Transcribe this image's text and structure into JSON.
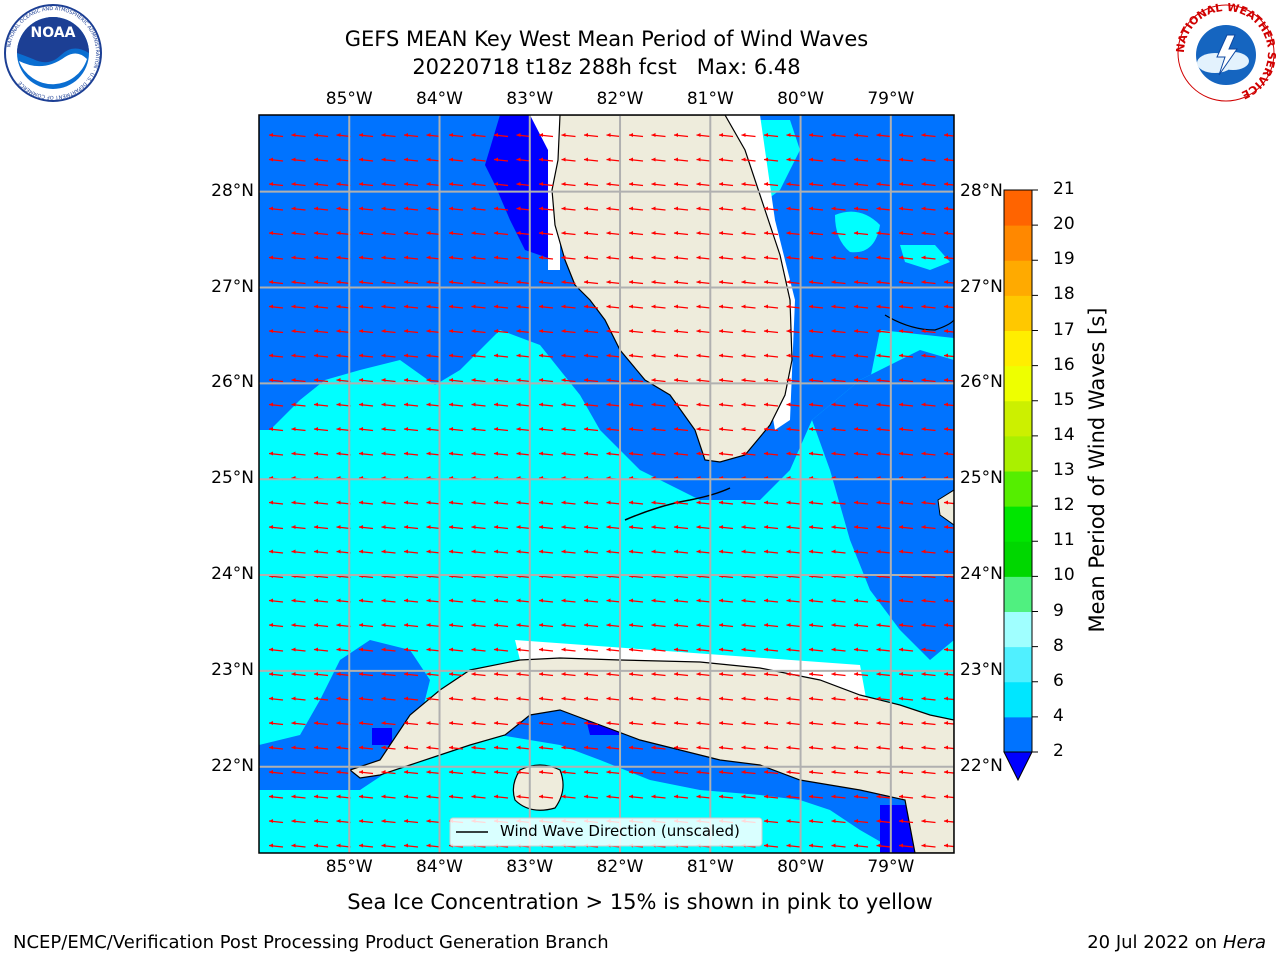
{
  "header": {
    "title_line1": "GEFS MEAN Key West Mean Period of Wind Waves",
    "title_line2": "20220718 t18z 288h fcst   Max: 6.48"
  },
  "logos": {
    "noaa_text": "NOAA",
    "noaa_ring_text": "NATIONAL OCEANIC AND ATMOSPHERIC ADMINISTRATION · U.S. DEPARTMENT OF COMMERCE",
    "nws_ring_text": "NATIONAL WEATHER SERVICE"
  },
  "map": {
    "lon_labels": [
      "85°W",
      "84°W",
      "83°W",
      "82°W",
      "81°W",
      "80°W",
      "79°W"
    ],
    "lat_labels": [
      "28°N",
      "27°N",
      "26°N",
      "25°N",
      "24°N",
      "23°N",
      "22°N"
    ],
    "lon_range": [
      -86.0,
      -78.3
    ],
    "lat_range": [
      21.1,
      28.8
    ],
    "legend_text": "Wind Wave Direction (unscaled)",
    "land_color": "#eeecdc",
    "arrow_color": "#ff0000",
    "wave_arrow_direction": "toward west"
  },
  "colorbar": {
    "label": "Mean Period of Wind Waves [s]",
    "ticks": [
      "2",
      "4",
      "6",
      "8",
      "9",
      "10",
      "11",
      "12",
      "13",
      "14",
      "15",
      "16",
      "17",
      "18",
      "19",
      "20",
      "21"
    ],
    "colors": [
      "#0073ff",
      "#00e6ff",
      "#50f0ff",
      "#a0ffff",
      "#50f080",
      "#00d700",
      "#00e600",
      "#55ee00",
      "#aaf000",
      "#ccf000",
      "#eeff00",
      "#ffee00",
      "#ffc800",
      "#ffaa00",
      "#ff8800",
      "#ff6400",
      "#ff3200",
      "#ff0000"
    ],
    "under_color": "#0000ff"
  },
  "field_colors": {
    "dark_blue": "#0000ff",
    "blue": "#0073ff",
    "cyan": "#00ffff",
    "light_cyan": "#50f0ff"
  },
  "notes": {
    "sea_ice": "Sea Ice Concentration > 15% is shown in pink to yellow"
  },
  "footer": {
    "left": "NCEP/EMC/Verification Post Processing Product Generation Branch",
    "right_prefix": "20 Jul 2022 on ",
    "right_host": "Hera"
  }
}
